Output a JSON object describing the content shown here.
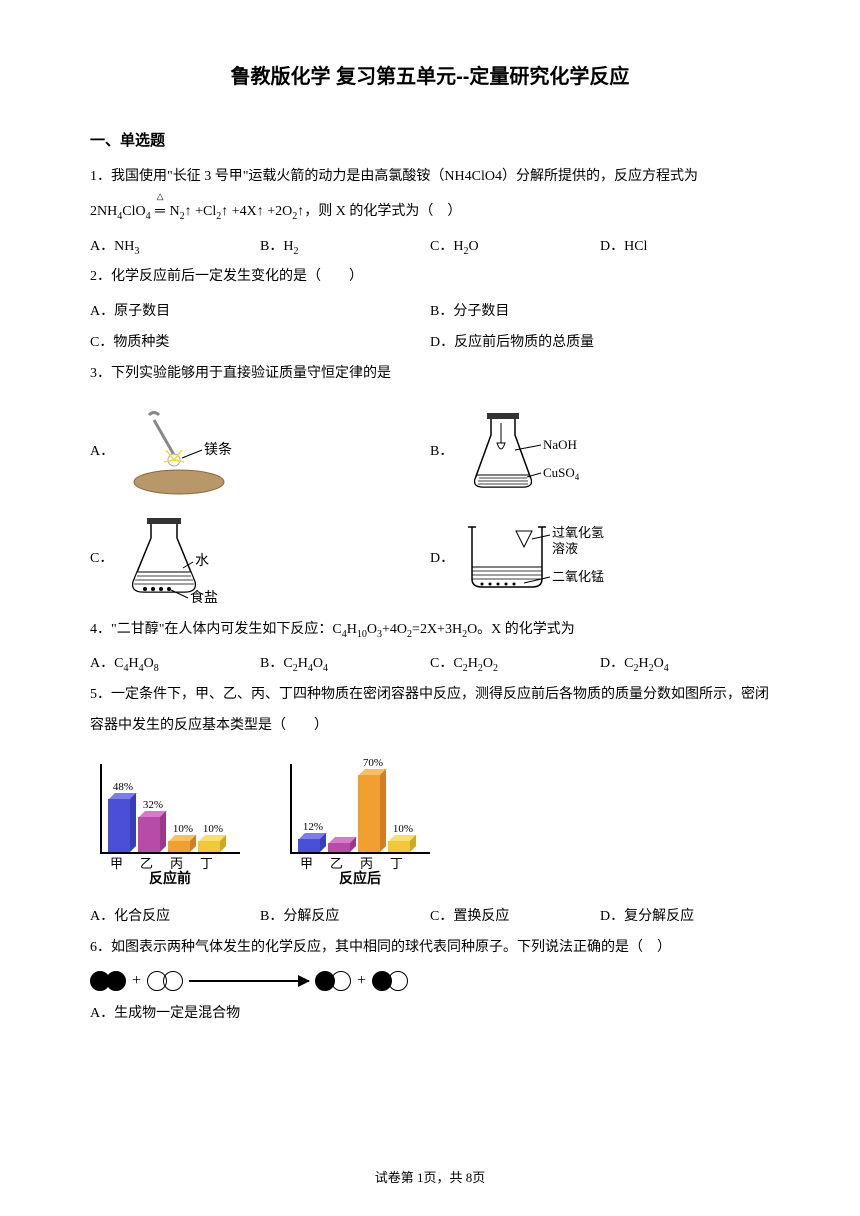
{
  "page": {
    "title": "鲁教版化学 复习第五单元--定量研究化学反应",
    "section_heading": "一、单选题",
    "footer": "试卷第 1页，共 8页"
  },
  "q1": {
    "text_a": "1．我国使用\"长征 3 号甲\"运载火箭的动力是由高氯酸铵（NH4ClO4）分解所提供的，反应方程式为",
    "equation": "2NH4ClO4 ═ N2↑ +Cl2↑ +4X↑ +2O2↑，则 X 的化学式为（　）",
    "A": "A．NH3",
    "B": "B．H2",
    "C": "C．H2O",
    "D": "D．HCl"
  },
  "q2": {
    "text": "2．化学反应前后一定发生变化的是（　　）",
    "A": "A．原子数目",
    "B": "B．分子数目",
    "C": "C．物质种类",
    "D": "D．反应前后物质的总质量"
  },
  "q3": {
    "text": "3．下列实验能够用于直接验证质量守恒定律的是",
    "labels": {
      "mg": "镁条",
      "naoh": "NaOH",
      "cuso4": "CuSO4",
      "water": "水",
      "salt": "食盐",
      "h2o2": "过氧化氢",
      "sol": "溶液",
      "mno2": "二氧化锰"
    }
  },
  "q4": {
    "text": "4．\"二甘醇\"在人体内可发生如下反应：C4H10O3+4O2=2X+3H2O。X 的化学式为",
    "A": "A．C4H4O8",
    "B": "B．C2H4O4",
    "C": "C．C2H2O2",
    "D": "D．C2H2O4"
  },
  "q5": {
    "text": "5．一定条件下，甲、乙、丙、丁四种物质在密闭容器中反应，测得反应前后各物质的质量分数如图所示，密闭容器中发生的反应基本类型是（　　）",
    "A": "A．化合反应",
    "B": "B．分解反应",
    "C": "C．置换反应",
    "D": "D．复分解反应",
    "chart_before": {
      "caption": "反应前",
      "categories": [
        "甲",
        "乙",
        "丙",
        "丁"
      ],
      "values": [
        48,
        32,
        10,
        10
      ],
      "labels": [
        "48%",
        "32%",
        "10%",
        "10%"
      ],
      "colors": [
        "#4a4fd8",
        "#b84aa8",
        "#f0a030",
        "#f0c838"
      ],
      "top_colors": [
        "#7a7fe8",
        "#d87ac8",
        "#f8c060",
        "#f8e070"
      ],
      "side_colors": [
        "#3a3fb8",
        "#983a88",
        "#d08020",
        "#d0a820"
      ]
    },
    "chart_after": {
      "caption": "反应后",
      "categories": [
        "甲",
        "乙",
        "丙",
        "丁"
      ],
      "values": [
        12,
        8,
        70,
        10
      ],
      "labels": [
        "12%",
        "",
        "70%",
        "10%"
      ],
      "colors": [
        "#4a4fd8",
        "#b84aa8",
        "#f0a030",
        "#f0c838"
      ],
      "top_colors": [
        "#7a7fe8",
        "#d87ac8",
        "#f8c060",
        "#f8e070"
      ],
      "side_colors": [
        "#3a3fb8",
        "#983a88",
        "#d08020",
        "#d0a820"
      ]
    }
  },
  "q6": {
    "text": "6．如图表示两种气体发生的化学反应，其中相同的球代表同种原子。下列说法正确的是（　）",
    "A": "A．生成物一定是混合物",
    "plus": "+"
  }
}
